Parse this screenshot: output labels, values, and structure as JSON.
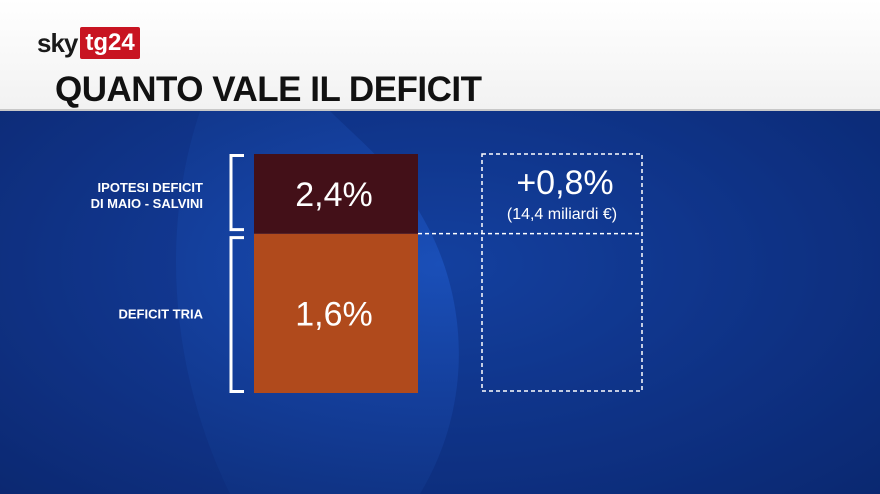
{
  "brand": {
    "sky": "sky",
    "tg": "tg24"
  },
  "title": "QUANTO VALE IL DEFICIT",
  "colors": {
    "base_segment": "#b04a1c",
    "top_segment": "#431018",
    "bracket": "#ffffff",
    "background": "#143f9c"
  },
  "chart_data": {
    "type": "bar",
    "title": "QUANTO VALE IL DEFICIT",
    "stacked": true,
    "categories": [
      "Deficit"
    ],
    "ylim": [
      0,
      2.4
    ],
    "segments": [
      {
        "name": "DEFICIT TRIA",
        "value": 1.6,
        "label": "1,6%"
      },
      {
        "name_lines": [
          "IPOTESI DEFICIT",
          "DI MAIO - SALVINI"
        ],
        "value": 0.8,
        "total": 2.4,
        "label": "2,4%"
      }
    ],
    "annotation": {
      "value": 0.8,
      "label": "+0,8%",
      "note": "(14,4 miliardi €)"
    }
  }
}
